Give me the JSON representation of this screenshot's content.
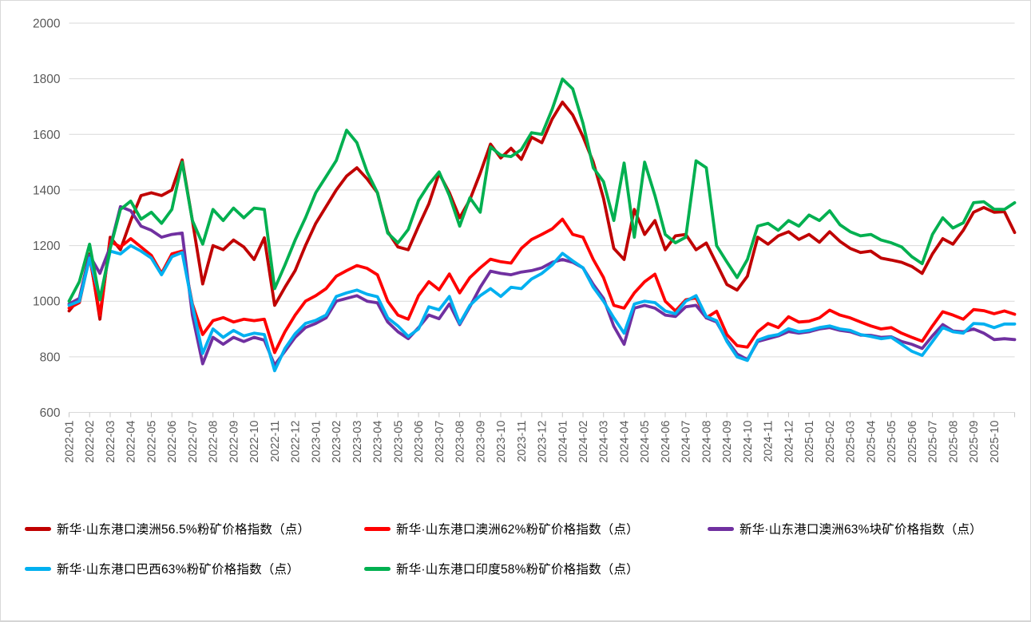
{
  "chart_data": {
    "type": "line",
    "title": "",
    "xlabel": "",
    "ylabel": "",
    "ylim": [
      600,
      2000
    ],
    "y_ticks": [
      600,
      800,
      1000,
      1200,
      1400,
      1600,
      1800,
      2000
    ],
    "grid": "horizontal",
    "legend_position": "bottom",
    "points_per_month": 2,
    "categories": [
      "2022-01",
      "2022-02",
      "2022-03",
      "2022-04",
      "2022-05",
      "2022-06",
      "2022-07",
      "2022-08",
      "2022-09",
      "2022-10",
      "2022-11",
      "2022-12",
      "2023-01",
      "2023-02",
      "2023-03",
      "2023-04",
      "2023-05",
      "2023-06",
      "2023-07",
      "2023-08",
      "2023-09",
      "2023-10",
      "2023-11",
      "2023-12",
      "2024-01",
      "2024-02",
      "2024-03",
      "2024-04",
      "2024-05",
      "2024-06",
      "2024-07",
      "2024-08",
      "2024-09",
      "2024-10",
      "2024-11",
      "2024-12",
      "2025-01",
      "2025-02",
      "2025-03",
      "2025-04",
      "2025-05",
      "2025-06",
      "2025-07",
      "2025-08",
      "2025-09",
      "2025-10"
    ],
    "colors": {
      "grid": "#d9d9d9",
      "axis_text": "#595959",
      "tick": "#c6c6c6",
      "border": "#d9d9d9"
    },
    "series": [
      {
        "name": "新华·山东港口澳洲56.5%粉矿价格指数（点）",
        "color": "#C00000",
        "values": [
          965,
          1010,
          1170,
          935,
          1230,
          1185,
          1290,
          1380,
          1390,
          1380,
          1400,
          1508,
          1290,
          1062,
          1200,
          1185,
          1220,
          1195,
          1150,
          1228,
          985,
          1050,
          1110,
          1200,
          1280,
          1340,
          1400,
          1450,
          1480,
          1440,
          1390,
          1250,
          1195,
          1185,
          1270,
          1350,
          1460,
          1390,
          1300,
          1365,
          1460,
          1565,
          1515,
          1550,
          1510,
          1590,
          1570,
          1655,
          1716,
          1670,
          1592,
          1500,
          1370,
          1190,
          1150,
          1330,
          1240,
          1290,
          1185,
          1235,
          1240,
          1185,
          1209,
          1135,
          1060,
          1040,
          1090,
          1230,
          1205,
          1235,
          1250,
          1222,
          1240,
          1212,
          1250,
          1215,
          1190,
          1175,
          1180,
          1155,
          1148,
          1140,
          1125,
          1100,
          1170,
          1225,
          1205,
          1255,
          1320,
          1337,
          1320,
          1322,
          1247
        ]
      },
      {
        "name": "新华·山东港口澳洲62%粉矿价格指数（点）",
        "color": "#FF0000",
        "values": [
          975,
          995,
          1160,
          950,
          1215,
          1195,
          1225,
          1195,
          1165,
          1100,
          1170,
          1180,
          990,
          880,
          930,
          941,
          925,
          935,
          930,
          935,
          815,
          890,
          950,
          1000,
          1020,
          1045,
          1090,
          1110,
          1128,
          1118,
          1095,
          1000,
          950,
          935,
          1020,
          1070,
          1041,
          1098,
          1030,
          1085,
          1120,
          1151,
          1142,
          1137,
          1190,
          1222,
          1240,
          1260,
          1295,
          1240,
          1230,
          1150,
          1085,
          985,
          975,
          1030,
          1070,
          1097,
          1000,
          965,
          1005,
          1012,
          940,
          964,
          880,
          840,
          835,
          890,
          920,
          905,
          944,
          925,
          928,
          940,
          968,
          950,
          940,
          925,
          911,
          900,
          905,
          885,
          870,
          856,
          911,
          962,
          950,
          935,
          970,
          966,
          955,
          965,
          953
        ]
      },
      {
        "name": "新华·山东港口澳洲63%块矿价格指数（点）",
        "color": "#7030A0",
        "values": [
          990,
          1010,
          1165,
          1100,
          1195,
          1340,
          1325,
          1270,
          1255,
          1230,
          1240,
          1245,
          950,
          775,
          870,
          845,
          870,
          855,
          870,
          860,
          770,
          820,
          870,
          905,
          920,
          940,
          1000,
          1010,
          1020,
          1000,
          994,
          925,
          890,
          865,
          905,
          950,
          937,
          990,
          916,
          980,
          1050,
          1108,
          1100,
          1095,
          1105,
          1110,
          1120,
          1140,
          1150,
          1140,
          1120,
          1060,
          1010,
          910,
          845,
          975,
          985,
          975,
          950,
          945,
          980,
          985,
          940,
          925,
          860,
          810,
          790,
          855,
          865,
          875,
          891,
          885,
          890,
          900,
          905,
          895,
          890,
          878,
          877,
          870,
          872,
          855,
          845,
          830,
          875,
          916,
          893,
          890,
          900,
          885,
          862,
          865,
          862
        ]
      },
      {
        "name": "新华·山东港口巴西63%粉矿价格指数（点）",
        "color": "#00B0F0",
        "values": [
          985,
          1000,
          1155,
          1010,
          1180,
          1170,
          1200,
          1180,
          1155,
          1095,
          1160,
          1175,
          985,
          812,
          900,
          870,
          895,
          875,
          885,
          880,
          750,
          830,
          883,
          920,
          931,
          950,
          1017,
          1030,
          1040,
          1025,
          1016,
          940,
          911,
          873,
          900,
          980,
          969,
          1017,
          920,
          985,
          1020,
          1045,
          1017,
          1050,
          1045,
          1080,
          1100,
          1130,
          1172,
          1145,
          1120,
          1050,
          1000,
          940,
          885,
          990,
          1000,
          995,
          965,
          955,
          1000,
          1020,
          945,
          930,
          855,
          800,
          787,
          860,
          873,
          880,
          901,
          890,
          895,
          905,
          911,
          900,
          895,
          880,
          873,
          865,
          870,
          845,
          820,
          805,
          855,
          905,
          890,
          885,
          920,
          918,
          905,
          918,
          918
        ]
      },
      {
        "name": "新华·山东港口印度58%粉矿价格指数（点）",
        "color": "#00B050",
        "values": [
          1000,
          1070,
          1205,
          1005,
          1190,
          1330,
          1360,
          1295,
          1320,
          1280,
          1330,
          1500,
          1290,
          1205,
          1330,
          1290,
          1335,
          1300,
          1335,
          1330,
          1045,
          1130,
          1220,
          1300,
          1390,
          1448,
          1506,
          1615,
          1570,
          1465,
          1390,
          1245,
          1210,
          1258,
          1362,
          1420,
          1465,
          1380,
          1270,
          1372,
          1320,
          1555,
          1525,
          1520,
          1545,
          1606,
          1600,
          1690,
          1799,
          1764,
          1640,
          1480,
          1430,
          1290,
          1497,
          1230,
          1500,
          1380,
          1240,
          1210,
          1230,
          1505,
          1480,
          1200,
          1141,
          1085,
          1150,
          1270,
          1280,
          1255,
          1290,
          1270,
          1310,
          1290,
          1325,
          1275,
          1250,
          1235,
          1240,
          1220,
          1210,
          1195,
          1160,
          1135,
          1240,
          1300,
          1263,
          1282,
          1354,
          1358,
          1331,
          1330,
          1354
        ]
      }
    ]
  }
}
